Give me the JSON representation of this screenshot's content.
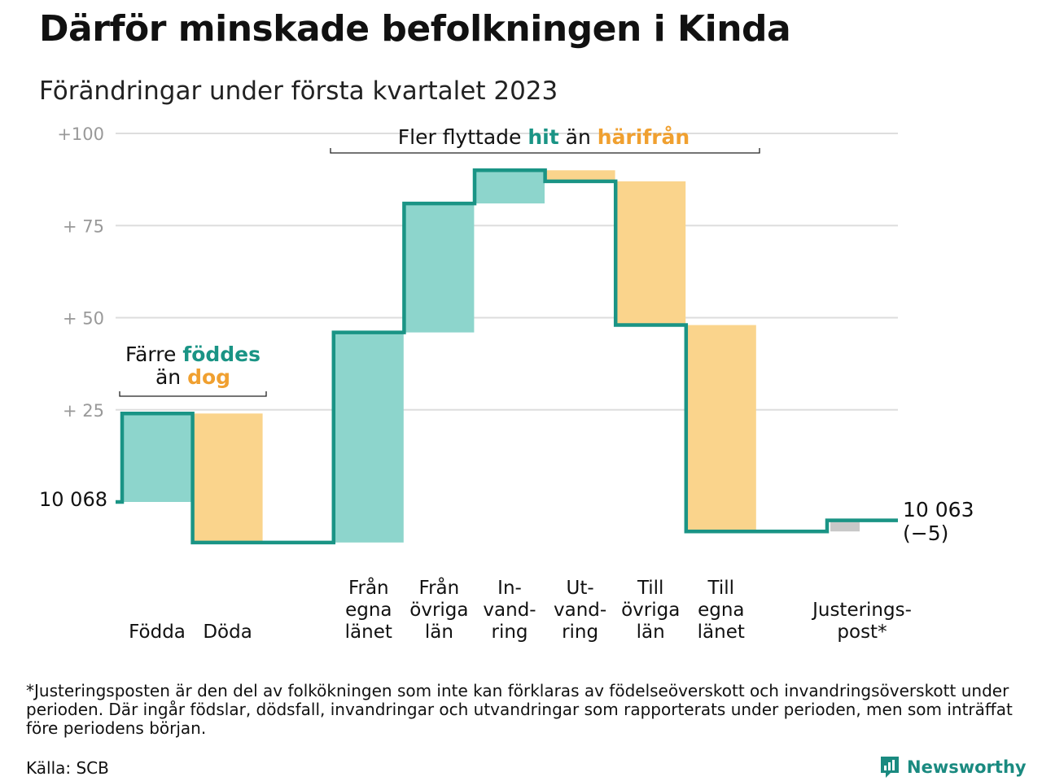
{
  "title": "Därför minskade befolkningen i Kinda",
  "subtitle": "Förändringar under första kvartalet 2023",
  "colors": {
    "positive": "#8dd5cc",
    "negative": "#fad48c",
    "adjust": "#c8c8c8",
    "line": "#1a9485",
    "teal_text": "#1a9485",
    "orange_text": "#f0a030",
    "grid": "#dddddd",
    "tick": "#999999"
  },
  "chart_data": {
    "type": "waterfall",
    "start_value": 10068,
    "start_label": "10 068",
    "end_value": 10063,
    "end_label": "10 063",
    "end_change_label": "(−5)",
    "ylim": [
      -11,
      100
    ],
    "yticks": [
      {
        "value": 100,
        "label": "+100"
      },
      {
        "value": 75,
        "label": "+ 75"
      },
      {
        "value": 50,
        "label": "+ 50"
      },
      {
        "value": 25,
        "label": "+ 25"
      }
    ],
    "grid": true,
    "bars": [
      {
        "label_lines": [
          "Födda"
        ],
        "change": 24,
        "kind": "positive",
        "slot": 0
      },
      {
        "label_lines": [
          "Döda"
        ],
        "change": -35,
        "kind": "negative",
        "slot": 1
      },
      {
        "label_lines": [
          "Från",
          "egna",
          "länet"
        ],
        "change": 57,
        "kind": "positive",
        "slot": 3
      },
      {
        "label_lines": [
          "Från",
          "övriga",
          "län"
        ],
        "change": 35,
        "kind": "positive",
        "slot": 4
      },
      {
        "label_lines": [
          "In-",
          "vand-",
          "ring"
        ],
        "change": 9,
        "kind": "positive",
        "slot": 5
      },
      {
        "label_lines": [
          "Ut-",
          "vand-",
          "ring"
        ],
        "change": -3,
        "kind": "negative",
        "slot": 6
      },
      {
        "label_lines": [
          "Till",
          "övriga",
          "län"
        ],
        "change": -39,
        "kind": "negative",
        "slot": 7
      },
      {
        "label_lines": [
          "Till",
          "egna",
          "länet"
        ],
        "change": -56,
        "kind": "negative",
        "slot": 8
      },
      {
        "label_lines": [
          "Justerings-",
          "post*"
        ],
        "change": 3,
        "kind": "adjust",
        "slot": 10
      }
    ],
    "annotations": [
      {
        "parts": [
          {
            "text": "Färre ",
            "style": "plain"
          },
          {
            "text": "föddes",
            "style": "teal"
          }
        ],
        "parts2": [
          {
            "text": "än ",
            "style": "plain"
          },
          {
            "text": "dog",
            "style": "orange"
          }
        ]
      },
      {
        "parts": [
          {
            "text": "Fler flyttade ",
            "style": "plain"
          },
          {
            "text": "hit",
            "style": "teal"
          },
          {
            "text": " än ",
            "style": "plain"
          },
          {
            "text": "härifrån",
            "style": "orange"
          }
        ]
      }
    ]
  },
  "footnote": "*Justeringsposten är den del av folkökningen som inte kan förklaras av födelseöverskott och invandringsöverskott under perioden. Där ingår födslar, dödsfall, invandringar och utvandringar som rapporterats under perioden, men som inträffat före periodens början.",
  "source": "Källa: SCB",
  "brand": {
    "name": "Newsworthy",
    "icon": "newsworthy-logo-icon"
  }
}
